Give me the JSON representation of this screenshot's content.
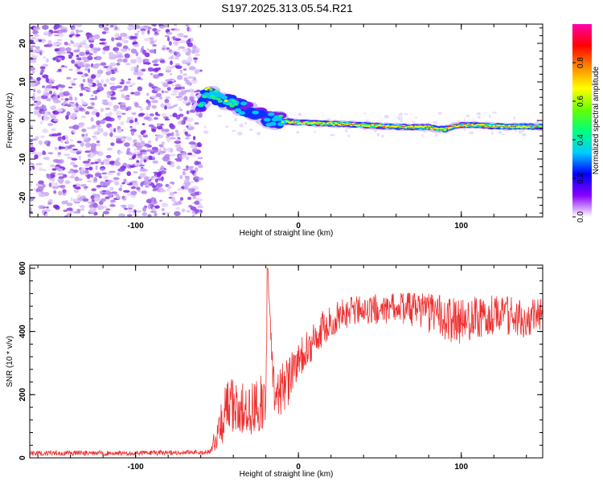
{
  "title": "S197.2025.313.05.54.R21",
  "chart_data": [
    {
      "type": "heatmap",
      "title": "S197.2025.313.05.54.R21",
      "xlabel": "Height of straight line (km)",
      "ylabel": "Frequency (Hz)",
      "xlim": [
        -165,
        150
      ],
      "ylim": [
        -25,
        25
      ],
      "xticks": [
        -100,
        0,
        100
      ],
      "yticks": [
        -20,
        -10,
        0,
        10,
        20
      ],
      "noise_region_x": [
        -165,
        -60
      ],
      "ridge": [
        {
          "x": -60,
          "y": 4.5,
          "a": 0.6
        },
        {
          "x": -56,
          "y": 7.5,
          "a": 0.75
        },
        {
          "x": -50,
          "y": 6.0,
          "a": 0.7
        },
        {
          "x": -45,
          "y": 5.0,
          "a": 0.65
        },
        {
          "x": -40,
          "y": 4.5,
          "a": 0.55
        },
        {
          "x": -35,
          "y": 3.5,
          "a": 0.5
        },
        {
          "x": -30,
          "y": 2.5,
          "a": 0.45
        },
        {
          "x": -25,
          "y": 1.5,
          "a": 0.45
        },
        {
          "x": -20,
          "y": 0.5,
          "a": 0.5
        },
        {
          "x": -15,
          "y": 0.0,
          "a": 0.55
        },
        {
          "x": -10,
          "y": -0.2,
          "a": 0.65
        },
        {
          "x": -5,
          "y": -0.3,
          "a": 0.8
        },
        {
          "x": 0,
          "y": -0.5,
          "a": 0.85
        },
        {
          "x": 10,
          "y": -0.7,
          "a": 0.9
        },
        {
          "x": 20,
          "y": -0.8,
          "a": 0.9
        },
        {
          "x": 30,
          "y": -1.0,
          "a": 0.9
        },
        {
          "x": 40,
          "y": -1.2,
          "a": 0.85
        },
        {
          "x": 50,
          "y": -1.4,
          "a": 0.85
        },
        {
          "x": 60,
          "y": -1.6,
          "a": 0.9
        },
        {
          "x": 70,
          "y": -1.7,
          "a": 0.9
        },
        {
          "x": 80,
          "y": -1.7,
          "a": 0.9
        },
        {
          "x": 85,
          "y": -2.2,
          "a": 0.85
        },
        {
          "x": 90,
          "y": -2.3,
          "a": 0.85
        },
        {
          "x": 95,
          "y": -1.4,
          "a": 0.85
        },
        {
          "x": 100,
          "y": -1.2,
          "a": 0.9
        },
        {
          "x": 110,
          "y": -1.2,
          "a": 0.9
        },
        {
          "x": 120,
          "y": -1.5,
          "a": 0.85
        },
        {
          "x": 130,
          "y": -1.6,
          "a": 0.85
        },
        {
          "x": 140,
          "y": -1.6,
          "a": 0.8
        },
        {
          "x": 150,
          "y": -1.6,
          "a": 0.75
        }
      ],
      "colorbar": {
        "label": "Normalized spectral amplitude",
        "range": [
          0,
          1
        ],
        "ticks": [
          "0.0",
          "0.2",
          "0.4",
          "0.6",
          "0.8"
        ],
        "tick_values": [
          0.0,
          0.2,
          0.4,
          0.6,
          0.8
        ],
        "stops": [
          "#ffffff",
          "#8800ff",
          "#0000ff",
          "#00ccff",
          "#00ff80",
          "#66ff00",
          "#ffff00",
          "#ff8800",
          "#ff0000",
          "#ff00aa"
        ]
      }
    },
    {
      "type": "line",
      "xlabel": "Height of straight line (km)",
      "ylabel": "SNR (10 * v/v)",
      "xlim": [
        -165,
        150
      ],
      "ylim": [
        0,
        610
      ],
      "xticks": [
        -100,
        0,
        100
      ],
      "yticks": [
        0,
        200,
        400,
        600
      ],
      "series": [
        {
          "name": "SNR",
          "color": "#ee3030",
          "x": [
            -165,
            -100,
            -55,
            -50,
            -45,
            -40,
            -35,
            -30,
            -25,
            -20,
            -19,
            -15,
            -10,
            -5,
            0,
            5,
            10,
            15,
            20,
            25,
            30,
            40,
            50,
            60,
            70,
            80,
            90,
            100,
            110,
            120,
            130,
            140,
            150
          ],
          "y": [
            15,
            15,
            18,
            60,
            150,
            170,
            160,
            150,
            160,
            190,
            600,
            190,
            220,
            250,
            300,
            340,
            380,
            410,
            430,
            450,
            460,
            470,
            470,
            475,
            470,
            460,
            440,
            430,
            440,
            450,
            450,
            440,
            445
          ],
          "spread": [
            10,
            10,
            10,
            60,
            110,
            110,
            100,
            100,
            110,
            110,
            20,
            110,
            100,
            100,
            90,
            80,
            70,
            70,
            60,
            60,
            60,
            60,
            60,
            60,
            70,
            80,
            90,
            90,
            90,
            80,
            80,
            80,
            80
          ]
        }
      ]
    }
  ]
}
